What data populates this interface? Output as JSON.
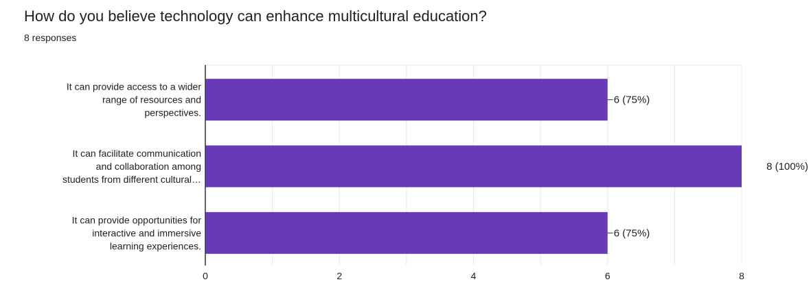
{
  "question": {
    "title": "How do you believe technology can enhance multicultural education?",
    "responses": "8 responses"
  },
  "colors": {
    "bar": "#673ab7",
    "grid": "#e8e8e8",
    "axis": "#333333"
  },
  "chart_data": {
    "type": "bar",
    "orientation": "horizontal",
    "title": "How do you believe technology can enhance multicultural education?",
    "subtitle": "8 responses",
    "categories": [
      "It can provide access to a wider range of resources and perspectives.",
      "It can facilitate communication and collaboration among students from different cultural…",
      "It can provide opportunities for interactive and immersive learning experiences."
    ],
    "category_lines": [
      [
        "It can provide access to a wider",
        "range of resources and",
        "perspectives."
      ],
      [
        "It can facilitate communication",
        "and collaboration among",
        "students from different cultural…"
      ],
      [
        "It can provide opportunities for",
        "interactive and immersive",
        "learning experiences."
      ]
    ],
    "values": [
      6,
      8,
      6
    ],
    "data_labels": [
      "6 (75%)",
      "8 (100%)",
      "6 (75%)"
    ],
    "x_ticks": [
      0,
      2,
      4,
      6,
      8
    ],
    "xlim": [
      0,
      8
    ],
    "grid": true,
    "xlabel": "",
    "ylabel": ""
  }
}
